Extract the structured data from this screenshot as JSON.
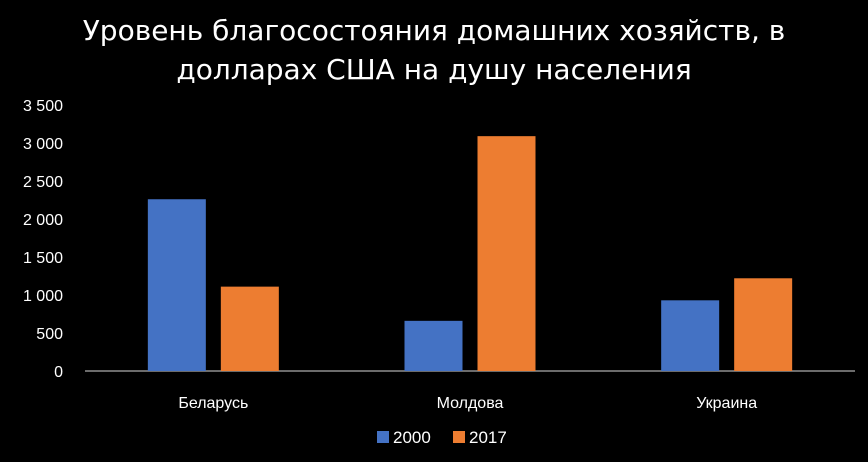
{
  "chart_data": {
    "type": "bar",
    "title_lines": [
      "Уровень благосостояния домашних хозяйств, в",
      "долларах США на душу населения"
    ],
    "categories": [
      "Беларусь",
      "Молдова",
      "Украина"
    ],
    "series": [
      {
        "name": "2000",
        "values": [
          2260,
          660,
          930
        ]
      },
      {
        "name": "2017",
        "values": [
          1110,
          3090,
          1220
        ]
      }
    ],
    "ylim": [
      0,
      3500
    ],
    "y_ticks": [
      0,
      500,
      1000,
      1500,
      2000,
      2500,
      3000,
      3500
    ],
    "y_tick_labels": [
      "0",
      "500",
      "1 000",
      "1 500",
      "2 000",
      "2 500",
      "3 000",
      "3 500"
    ],
    "grid": false,
    "legend_position": "bottom",
    "colors": {
      "2000": "#4472c4",
      "2017": "#ed7d31",
      "background": "#000000",
      "text": "#ffffff"
    }
  }
}
